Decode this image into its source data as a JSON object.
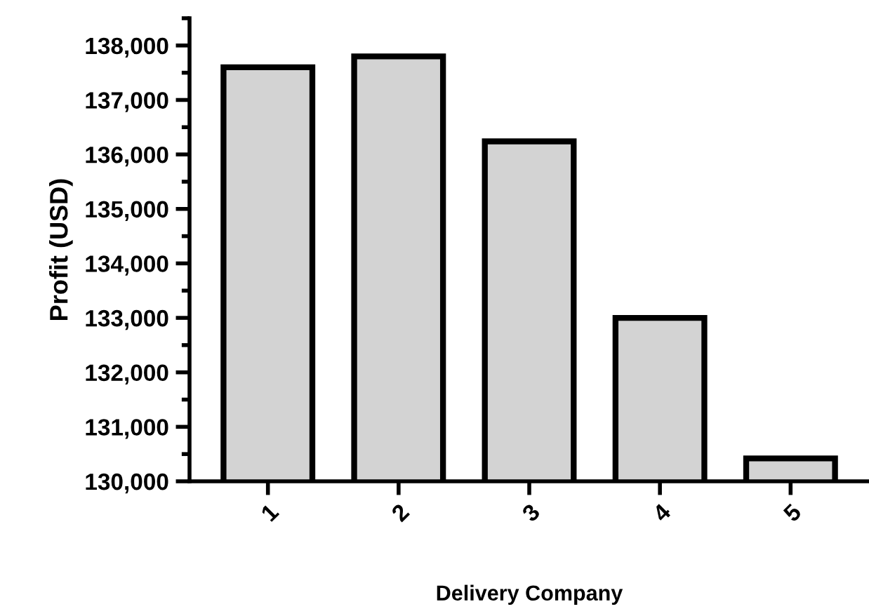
{
  "chart_data": {
    "type": "bar",
    "xlabel": "Delivery Company",
    "ylabel": "Profit (USD)",
    "categories": [
      "1",
      "2",
      "3",
      "4",
      "5"
    ],
    "values": [
      137600,
      137800,
      136240,
      133000,
      130420
    ],
    "color": "#d3d3d3",
    "ylim": [
      130000,
      138500
    ],
    "yticks": [
      {
        "value": 130000,
        "label": "130,000"
      },
      {
        "value": 130500,
        "label": null
      },
      {
        "value": 131000,
        "label": "131,000"
      },
      {
        "value": 131500,
        "label": null
      },
      {
        "value": 132000,
        "label": "132,000"
      },
      {
        "value": 132500,
        "label": null
      },
      {
        "value": 133000,
        "label": "133,000"
      },
      {
        "value": 133500,
        "label": null
      },
      {
        "value": 134000,
        "label": "134,000"
      },
      {
        "value": 134500,
        "label": null
      },
      {
        "value": 135000,
        "label": "135,000"
      },
      {
        "value": 135500,
        "label": null
      },
      {
        "value": 136000,
        "label": "136,000"
      },
      {
        "value": 136500,
        "label": null
      },
      {
        "value": 137000,
        "label": "137,000"
      },
      {
        "value": 137500,
        "label": null
      },
      {
        "value": 138000,
        "label": "138,000"
      },
      {
        "value": 138500,
        "label": null
      }
    ],
    "grid": false
  }
}
